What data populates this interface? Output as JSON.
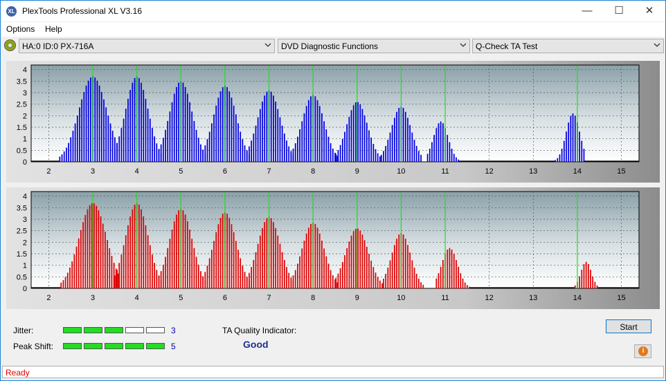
{
  "window": {
    "title": "PlexTools Professional XL V3.16",
    "icon_label": "XL"
  },
  "menu": {
    "items": [
      "Options",
      "Help"
    ]
  },
  "toolbar": {
    "drive": "HA:0 ID:0  PX-716A",
    "function": "DVD Diagnostic Functions",
    "test": "Q-Check TA Test"
  },
  "chart_data": [
    {
      "type": "bar",
      "title": "",
      "color": "#0000dd",
      "xlim": [
        1.6,
        15.4
      ],
      "ylim": [
        0,
        4.2
      ],
      "x_ticks": [
        2,
        3,
        4,
        5,
        6,
        7,
        8,
        9,
        10,
        11,
        12,
        13,
        14,
        15
      ],
      "y_ticks": [
        0,
        0.5,
        1,
        1.5,
        2,
        2.5,
        3,
        3.5,
        4
      ],
      "markers": [
        3,
        4,
        5,
        6,
        7,
        8,
        9,
        10,
        11,
        14
      ],
      "peaks": [
        {
          "center": 3.0,
          "height": 3.7,
          "start": 2.25,
          "end": 3.58
        },
        {
          "center": 4.0,
          "height": 3.7,
          "start": 3.5,
          "end": 4.58
        },
        {
          "center": 5.0,
          "height": 3.5,
          "start": 4.5,
          "end": 5.58
        },
        {
          "center": 6.0,
          "height": 3.3,
          "start": 5.5,
          "end": 6.58
        },
        {
          "center": 7.0,
          "height": 3.1,
          "start": 6.5,
          "end": 7.58
        },
        {
          "center": 8.0,
          "height": 2.9,
          "start": 7.5,
          "end": 8.55
        },
        {
          "center": 9.0,
          "height": 2.6,
          "start": 8.52,
          "end": 9.52
        },
        {
          "center": 10.0,
          "height": 2.4,
          "start": 9.55,
          "end": 10.48
        },
        {
          "center": 10.9,
          "height": 1.75,
          "start": 10.6,
          "end": 11.3
        },
        {
          "center": 13.9,
          "height": 2.1,
          "start": 13.5,
          "end": 14.15
        }
      ],
      "baseline_segments": [
        [
          1.6,
          2.25
        ],
        [
          11.3,
          13.5
        ],
        [
          14.15,
          15.4
        ]
      ]
    },
    {
      "type": "bar",
      "title": "",
      "color": "#dd0000",
      "xlim": [
        1.6,
        15.4
      ],
      "ylim": [
        0,
        4.2
      ],
      "x_ticks": [
        2,
        3,
        4,
        5,
        6,
        7,
        8,
        9,
        10,
        11,
        12,
        13,
        14,
        15
      ],
      "y_ticks": [
        0,
        0.5,
        1,
        1.5,
        2,
        2.5,
        3,
        3.5,
        4
      ],
      "markers": [
        3,
        4,
        5,
        6,
        7,
        8,
        9,
        10,
        11,
        14
      ],
      "peaks": [
        {
          "center": 3.0,
          "height": 3.7,
          "start": 2.28,
          "end": 3.58
        },
        {
          "center": 4.0,
          "height": 3.7,
          "start": 3.5,
          "end": 4.58
        },
        {
          "center": 5.0,
          "height": 3.45,
          "start": 4.5,
          "end": 5.58
        },
        {
          "center": 6.0,
          "height": 3.3,
          "start": 5.5,
          "end": 6.58
        },
        {
          "center": 7.0,
          "height": 3.1,
          "start": 6.5,
          "end": 7.58
        },
        {
          "center": 8.0,
          "height": 2.85,
          "start": 7.5,
          "end": 8.55
        },
        {
          "center": 9.0,
          "height": 2.6,
          "start": 8.52,
          "end": 9.6
        },
        {
          "center": 10.0,
          "height": 2.4,
          "start": 9.6,
          "end": 10.5
        },
        {
          "center": 11.1,
          "height": 1.75,
          "start": 10.8,
          "end": 11.55
        },
        {
          "center": 14.2,
          "height": 1.15,
          "start": 13.95,
          "end": 14.45
        }
      ],
      "baseline_segments": [
        [
          1.6,
          2.28
        ],
        [
          11.55,
          13.95
        ],
        [
          14.45,
          15.4
        ]
      ]
    }
  ],
  "results": {
    "jitter_label": "Jitter:",
    "jitter_value": "3",
    "jitter_level": 3,
    "peak_shift_label": "Peak Shift:",
    "peak_shift_value": "5",
    "peak_shift_level": 5,
    "quality_label": "TA Quality Indicator:",
    "quality_value": "Good"
  },
  "buttons": {
    "start": "Start"
  },
  "status": {
    "text": "Ready"
  },
  "colors": {
    "meter_on": "#22dd22",
    "status_text": "#e00000",
    "quality_text": "#1f2f8e"
  }
}
